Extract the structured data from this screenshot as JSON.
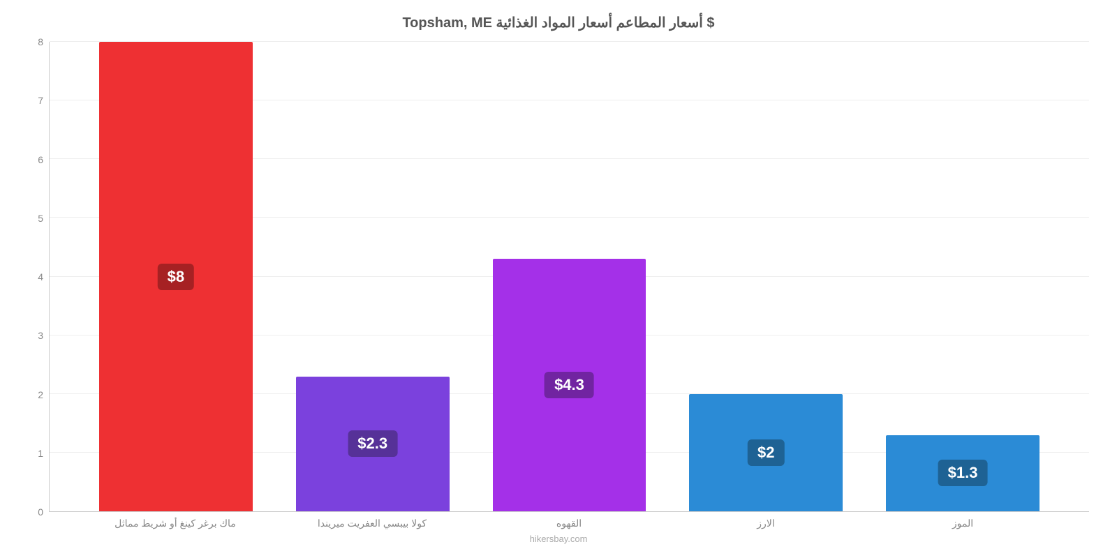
{
  "chart": {
    "type": "bar",
    "title": "Topsham, ME أسعار المطاعم أسعار المواد الغذائية $",
    "title_fontsize": 20,
    "title_color": "#555555",
    "background_color": "#ffffff",
    "grid_color": "#eeeeee",
    "axis_color": "#cccccc",
    "ylim": [
      0,
      8
    ],
    "ytick_step": 1,
    "yticks": [
      "0",
      "1",
      "2",
      "3",
      "4",
      "5",
      "6",
      "7",
      "8"
    ],
    "ytick_color": "#888888",
    "ytick_fontsize": 14,
    "xtick_color": "#888888",
    "xtick_fontsize": 14,
    "bar_width": 0.78,
    "bar_label_fontsize": 22,
    "bar_label_color": "#ffffff",
    "categories": [
      "ماك برغر كينغ أو شريط مماثل",
      "كولا بيبسي العفريت ميريندا",
      "القهوه",
      "الارز",
      "الموز"
    ],
    "values": [
      8,
      2.3,
      4.3,
      2,
      1.3
    ],
    "value_labels": [
      "$8",
      "$2.3",
      "$4.3",
      "$2",
      "$1.3"
    ],
    "bar_colors": [
      "#ee3033",
      "#7b41dd",
      "#a430e8",
      "#2b8bd6",
      "#2b8bd6"
    ],
    "bar_label_bg_colors": [
      "#a62123",
      "#563198",
      "#7124a1",
      "#1e6294",
      "#1e6294"
    ],
    "footer": "hikersbay.com",
    "footer_color": "#aaaaaa",
    "footer_fontsize": 13
  }
}
